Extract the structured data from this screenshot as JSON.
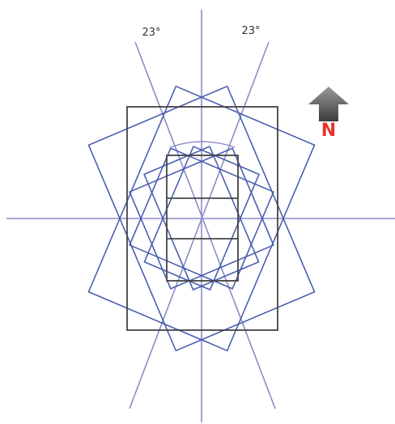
{
  "angles": [
    {
      "label": "23°"
    },
    {
      "label": "23°"
    }
  ],
  "compass": {
    "label": "N"
  }
}
